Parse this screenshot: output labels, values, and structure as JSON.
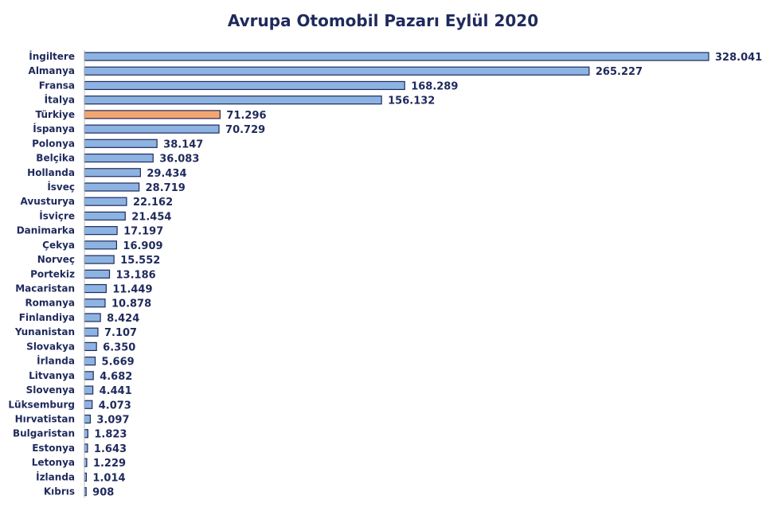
{
  "chart_data": {
    "type": "bar",
    "orientation": "horizontal",
    "title": "Avrupa Otomobil Pazarı Eylül 2020",
    "xlabel": "",
    "ylabel": "",
    "xlim": [
      0,
      328041
    ],
    "grid": false,
    "legend": "none",
    "categories": [
      "İngiltere",
      "Almanya",
      "Fransa",
      "İtalya",
      "Türkiye",
      "İspanya",
      "Polonya",
      "Belçika",
      "Hollanda",
      "İsveç",
      "Avusturya",
      "İsviçre",
      "Danimarka",
      "Çekya",
      "Norveç",
      "Portekiz",
      "Macaristan",
      "Romanya",
      "Finlandiya",
      "Yunanistan",
      "Slovakya",
      "İrlanda",
      "Litvanya",
      "Slovenya",
      "Lüksemburg",
      "Hırvatistan",
      "Bulgaristan",
      "Estonya",
      "Letonya",
      "İzlanda",
      "Kıbrıs"
    ],
    "values": [
      328041,
      265227,
      168289,
      156132,
      71296,
      70729,
      38147,
      36083,
      29434,
      28719,
      22162,
      21454,
      17197,
      16909,
      15552,
      13186,
      11449,
      10878,
      8424,
      7107,
      6350,
      5669,
      4682,
      4441,
      4073,
      3097,
      1823,
      1643,
      1229,
      1014,
      908
    ],
    "value_labels": [
      "328.041",
      "265.227",
      "168.289",
      "156.132",
      "71.296",
      "70.729",
      "38.147",
      "36.083",
      "29.434",
      "28.719",
      "22.162",
      "21.454",
      "17.197",
      "16.909",
      "15.552",
      "13.186",
      "11.449",
      "10.878",
      "8.424",
      "7.107",
      "6.350",
      "5.669",
      "4.682",
      "4.441",
      "4.073",
      "3.097",
      "1.823",
      "1.643",
      "1.229",
      "1.014",
      "908"
    ],
    "highlight": "Türkiye",
    "colors": {
      "bar": "#8db3e2",
      "bar_stroke": "#1f2a5c",
      "highlight_bar": "#f4a671",
      "highlight_stroke": "#1f2a5c",
      "label": "#1f2a5c",
      "highlight_label": "#c0632a"
    }
  }
}
